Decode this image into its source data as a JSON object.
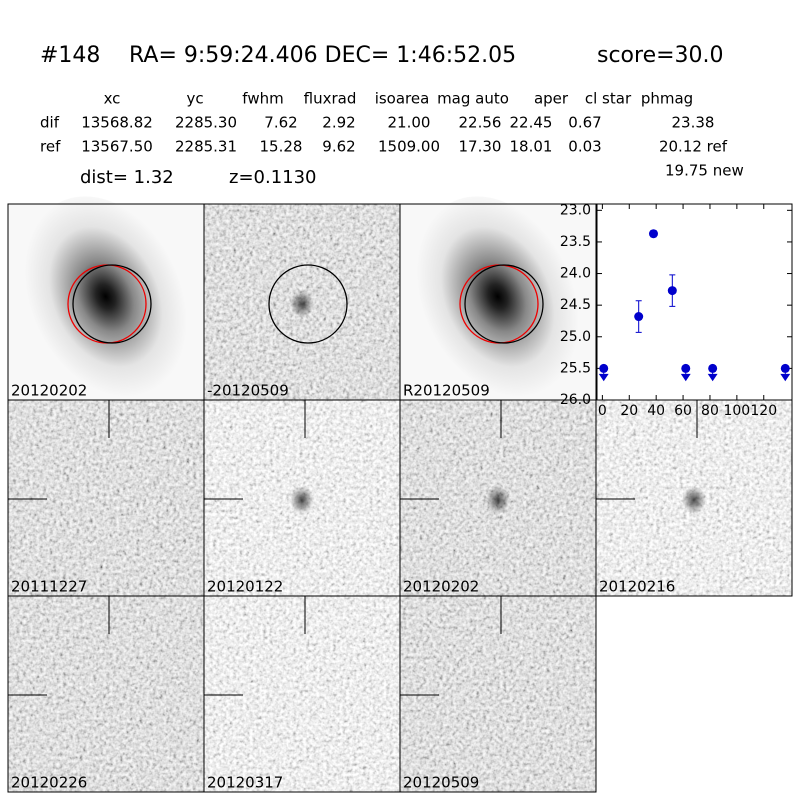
{
  "header": {
    "id": "#148",
    "coords": "RA= 9:59:24.406 DEC= 1:46:52.05",
    "score": "score=30.0"
  },
  "table": {
    "columns": [
      "xc",
      "yc",
      "fwhm",
      "fluxrad",
      "isoarea",
      "mag auto",
      "aper",
      "cl star",
      "phmag"
    ],
    "rows": [
      {
        "label": "dif",
        "cells": [
          "13568.82",
          "2285.30",
          "7.62",
          "2.92",
          "21.00",
          "22.56",
          "22.45",
          "0.67",
          "23.38"
        ]
      },
      {
        "label": "ref",
        "cells": [
          "13567.50",
          "2285.31",
          "15.28",
          "9.62",
          "1509.00",
          "17.30",
          "18.01",
          "0.03",
          "20.12 ref"
        ]
      }
    ],
    "note": "19.75 new"
  },
  "dist": "dist=  1.32",
  "z": "z=0.1130",
  "stamps": [
    {
      "label": "20120202"
    },
    {
      "label": "-20120509"
    },
    {
      "label": "R20120509"
    },
    {
      "label": "20111227"
    },
    {
      "label": "20120122"
    },
    {
      "label": "20120202",
      "color": "#ff0000"
    },
    {
      "label": "20120216"
    },
    {
      "label": "20120226"
    },
    {
      "label": "20120317"
    },
    {
      "label": "20120509"
    }
  ],
  "chart_data": {
    "type": "scatter",
    "xlim": [
      -4,
      141
    ],
    "ylim": [
      26.0,
      22.9
    ],
    "xticks": [
      0,
      20,
      40,
      60,
      80,
      100,
      120
    ],
    "yticks": [
      {
        "value": 23.0,
        "label": "23.0"
      },
      {
        "value": 23.5,
        "label": "23.5"
      },
      {
        "value": 24.0,
        "label": "24.0"
      },
      {
        "value": 24.5,
        "label": "24.5"
      },
      {
        "value": 25.0,
        "label": "25.0"
      },
      {
        "value": 25.5,
        "label": "25.5"
      },
      {
        "value": 26.0,
        "label": "26.0"
      }
    ],
    "series": [
      {
        "color": "#0000cc",
        "x": [
          27,
          38,
          52
        ],
        "values": [
          24.68,
          23.37,
          24.27
        ],
        "errors": [
          0.25,
          0.05,
          0.25
        ]
      },
      {
        "color": "#0000cc",
        "marker": "upper-limit",
        "x": [
          1,
          62,
          82,
          136
        ],
        "values": [
          25.5,
          25.5,
          25.5,
          25.5
        ]
      }
    ]
  }
}
